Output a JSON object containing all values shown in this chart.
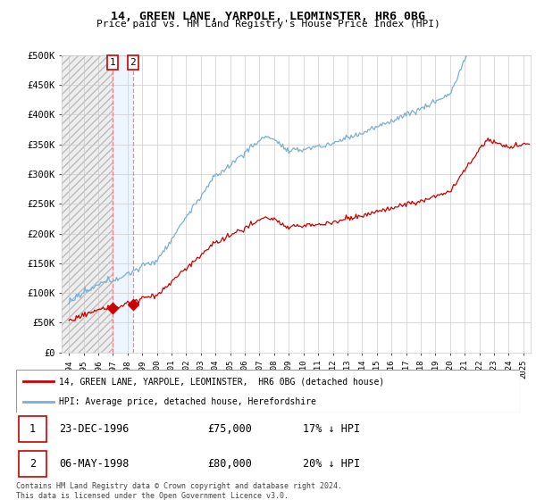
{
  "title": "14, GREEN LANE, YARPOLE, LEOMINSTER, HR6 0BG",
  "subtitle": "Price paid vs. HM Land Registry's House Price Index (HPI)",
  "ylim": [
    0,
    500000
  ],
  "xlim_start": 1993.5,
  "xlim_end": 2025.5,
  "yticks": [
    0,
    50000,
    100000,
    150000,
    200000,
    250000,
    300000,
    350000,
    400000,
    450000,
    500000
  ],
  "ytick_labels": [
    "£0",
    "£50K",
    "£100K",
    "£150K",
    "£200K",
    "£250K",
    "£300K",
    "£350K",
    "£400K",
    "£450K",
    "£500K"
  ],
  "sale1_date": 1996.98,
  "sale1_price": 75000,
  "sale1_label": "1",
  "sale2_date": 1998.37,
  "sale2_price": 80000,
  "sale2_label": "2",
  "line_color_property": "#cc0000",
  "line_color_hpi": "#7bafd4",
  "marker_color": "#cc0000",
  "legend_property": "14, GREEN LANE, YARPOLE, LEOMINSTER,  HR6 0BG (detached house)",
  "legend_hpi": "HPI: Average price, detached house, Herefordshire",
  "table_rows": [
    {
      "num": "1",
      "date": "23-DEC-1996",
      "price": "£75,000",
      "info": "17% ↓ HPI"
    },
    {
      "num": "2",
      "date": "06-MAY-1998",
      "price": "£80,000",
      "info": "20% ↓ HPI"
    }
  ],
  "footer": "Contains HM Land Registry data © Crown copyright and database right 2024.\nThis data is licensed under the Open Government Licence v3.0.",
  "grid_color": "#cccccc",
  "hatch_color": "#dddddd"
}
